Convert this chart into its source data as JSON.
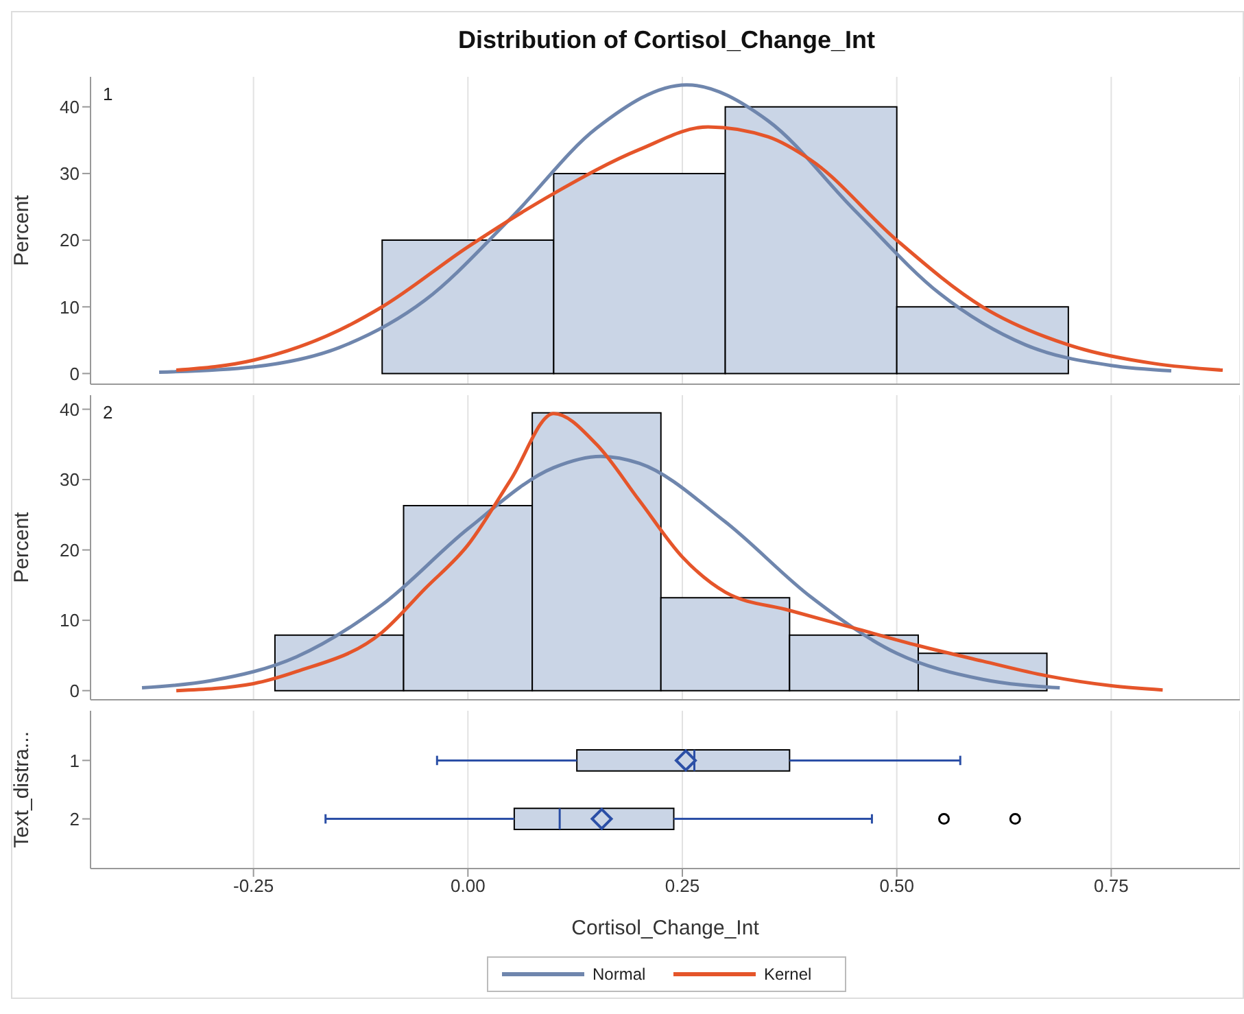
{
  "chart_data": [
    {
      "type": "histogram",
      "title": "Distribution of Cortisol_Change_Int",
      "ylabel": "Percent",
      "annotations": [
        "1"
      ],
      "bins": [
        -0.1,
        0.1,
        0.3,
        0.5,
        0.7
      ],
      "values": [
        20,
        30,
        40,
        10
      ],
      "color": "#cad5e6",
      "xlim": [
        -0.44,
        0.9
      ],
      "xticks": [
        -0.25,
        0,
        0.25,
        0.5,
        0.75
      ],
      "ylim": [
        -1.6,
        44.5
      ],
      "yticks": [
        0,
        10,
        20,
        30,
        40
      ],
      "tick_labels": "y",
      "grid": "x",
      "legend": "bottom",
      "series": [
        {
          "name": "Normal",
          "type": "line",
          "color": "#6f86ad",
          "x": [
            -0.36,
            -0.25,
            -0.15,
            -0.05,
            0.05,
            0.15,
            0.255,
            0.35,
            0.45,
            0.55,
            0.65,
            0.75,
            0.82
          ],
          "values": [
            0.2,
            1,
            3.9,
            11,
            23.3,
            36.8,
            43.3,
            37.9,
            24.6,
            12,
            4.3,
            1.2,
            0.4
          ]
        },
        {
          "name": "Kernel",
          "type": "line",
          "color": "#e5552a",
          "x": [
            -0.34,
            -0.25,
            -0.15,
            -0.1,
            0,
            0.1,
            0.2,
            0.28,
            0.35,
            0.4,
            0.5,
            0.6,
            0.7,
            0.8,
            0.88
          ],
          "values": [
            0.5,
            2,
            6.5,
            10,
            19,
            27,
            33.6,
            37,
            35.5,
            32,
            20,
            10,
            4.3,
            1.5,
            0.5
          ]
        }
      ]
    },
    {
      "type": "histogram",
      "ylabel": "Percent",
      "annotations": [
        "2"
      ],
      "bins": [
        -0.225,
        -0.075,
        0.075,
        0.225,
        0.375,
        0.525,
        0.675
      ],
      "values": [
        7.9,
        26.3,
        39.5,
        13.2,
        7.9,
        5.3
      ],
      "color": "#cad5e6",
      "xlim": [
        -0.44,
        0.9
      ],
      "xticks": [
        -0.25,
        0,
        0.25,
        0.5,
        0.75
      ],
      "ylim": [
        -1.3,
        42
      ],
      "yticks": [
        0,
        10,
        20,
        30,
        40
      ],
      "tick_labels": "y",
      "grid": "x",
      "series": [
        {
          "type": "line",
          "color": "#6f86ad",
          "x": [
            -0.38,
            -0.3,
            -0.2,
            -0.1,
            0,
            0.1,
            0.155,
            0.2,
            0.3,
            0.4,
            0.5,
            0.6,
            0.69
          ],
          "values": [
            0.4,
            1.4,
            4.8,
            12.2,
            23,
            31.7,
            33.3,
            32.3,
            24,
            13.3,
            5.3,
            1.6,
            0.4
          ]
        },
        {
          "type": "line",
          "color": "#e5552a",
          "x": [
            -0.34,
            -0.25,
            -0.2,
            -0.1,
            -0.05,
            0,
            0.05,
            0.1,
            0.15,
            0.2,
            0.25,
            0.3,
            0.375,
            0.45,
            0.525,
            0.6,
            0.675,
            0.75,
            0.81
          ],
          "values": [
            0,
            1,
            2.7,
            8.3,
            14.5,
            20.7,
            30,
            39.4,
            35,
            27,
            19,
            14,
            11.4,
            8.9,
            6.4,
            4.2,
            2.1,
            0.7,
            0.1
          ]
        }
      ]
    },
    {
      "type": "box",
      "orientation": "horizontal",
      "xlabel": "Cortisol_Change_Int",
      "ylabel": "Text_distra...",
      "categories": [
        "1",
        "2"
      ],
      "color": "#2b4fa6",
      "xlim": [
        -0.44,
        0.9
      ],
      "xticks": [
        -0.25,
        {
          "value": 0,
          "label": "0.00"
        },
        0.25,
        {
          "value": 0.5,
          "label": "0.50"
        },
        {
          "value": 0.75,
          "label": "0.75"
        }
      ],
      "grid": "x",
      "series": [
        {
          "color": "#cad5e6",
          "boxes": [
            {
              "low": -0.036,
              "q1": 0.127,
              "median": 0.264,
              "q3": 0.375,
              "high": 0.574,
              "mean": 0.254
            },
            {
              "low": -0.166,
              "q1": 0.054,
              "median": 0.107,
              "q3": 0.24,
              "high": 0.471,
              "mean": 0.156,
              "outliers": [
                0.555,
                0.638
              ]
            }
          ]
        }
      ]
    }
  ]
}
